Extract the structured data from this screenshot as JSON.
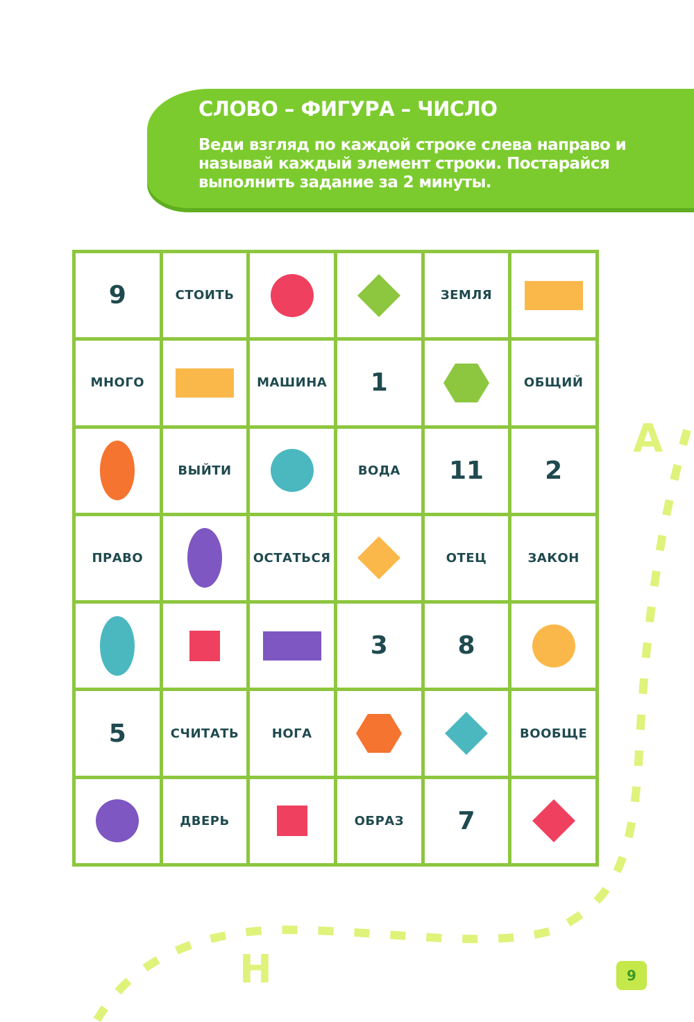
{
  "header": {
    "title": "СЛОВО – ФИГУРА – ЧИСЛО",
    "instruction": "Веди взгляд по каждой строке слева направо и называй каждый элемент строки. Постарайся выполнить задание за 2 минуты."
  },
  "colors": {
    "red": "#f0405f",
    "green": "#8dc63f",
    "yellow": "#fbb84a",
    "orange": "#f47430",
    "teal": "#4bb8c0",
    "purple": "#7e57c2"
  },
  "grid": [
    [
      {
        "t": "num",
        "v": "9"
      },
      {
        "t": "word",
        "v": "СТОИТЬ"
      },
      {
        "t": "shape",
        "s": "circle",
        "c": "red"
      },
      {
        "t": "shape",
        "s": "diamond",
        "c": "green"
      },
      {
        "t": "word",
        "v": "ЗЕМЛЯ"
      },
      {
        "t": "shape",
        "s": "rect",
        "c": "yellow"
      }
    ],
    [
      {
        "t": "word",
        "v": "МНОГО"
      },
      {
        "t": "shape",
        "s": "rect",
        "c": "yellow"
      },
      {
        "t": "word",
        "v": "МАШИНА"
      },
      {
        "t": "num",
        "v": "1"
      },
      {
        "t": "shape",
        "s": "hexagon",
        "c": "green"
      },
      {
        "t": "word",
        "v": "ОБЩИЙ"
      }
    ],
    [
      {
        "t": "shape",
        "s": "ellipse",
        "c": "orange"
      },
      {
        "t": "word",
        "v": "ВЫЙТИ"
      },
      {
        "t": "shape",
        "s": "circle",
        "c": "teal"
      },
      {
        "t": "word",
        "v": "ВОДА"
      },
      {
        "t": "num",
        "v": "11"
      },
      {
        "t": "num",
        "v": "2"
      }
    ],
    [
      {
        "t": "word",
        "v": "ПРАВО"
      },
      {
        "t": "shape",
        "s": "ellipse",
        "c": "purple"
      },
      {
        "t": "word",
        "v": "ОСТАТЬСЯ"
      },
      {
        "t": "shape",
        "s": "diamond",
        "c": "yellow"
      },
      {
        "t": "word",
        "v": "ОТЕЦ"
      },
      {
        "t": "word",
        "v": "ЗАКОН"
      }
    ],
    [
      {
        "t": "shape",
        "s": "ellipse",
        "c": "teal"
      },
      {
        "t": "shape",
        "s": "square",
        "c": "red"
      },
      {
        "t": "shape",
        "s": "rect",
        "c": "purple"
      },
      {
        "t": "num",
        "v": "3"
      },
      {
        "t": "num",
        "v": "8"
      },
      {
        "t": "shape",
        "s": "circle",
        "c": "yellow"
      }
    ],
    [
      {
        "t": "num",
        "v": "5"
      },
      {
        "t": "word",
        "v": "СЧИТАТЬ"
      },
      {
        "t": "word",
        "v": "НОГА"
      },
      {
        "t": "shape",
        "s": "hexagon",
        "c": "orange"
      },
      {
        "t": "shape",
        "s": "diamond",
        "c": "teal"
      },
      {
        "t": "word",
        "v": "ВООБЩЕ"
      }
    ],
    [
      {
        "t": "shape",
        "s": "circle",
        "c": "purple"
      },
      {
        "t": "word",
        "v": "ДВЕРЬ"
      },
      {
        "t": "shape",
        "s": "square",
        "c": "red"
      },
      {
        "t": "word",
        "v": "ОБРАЗ"
      },
      {
        "t": "num",
        "v": "7"
      },
      {
        "t": "shape",
        "s": "diamond",
        "c": "red"
      }
    ]
  ],
  "decor": {
    "letter_a": "А",
    "letter_n": "Н"
  },
  "page_number": "9"
}
